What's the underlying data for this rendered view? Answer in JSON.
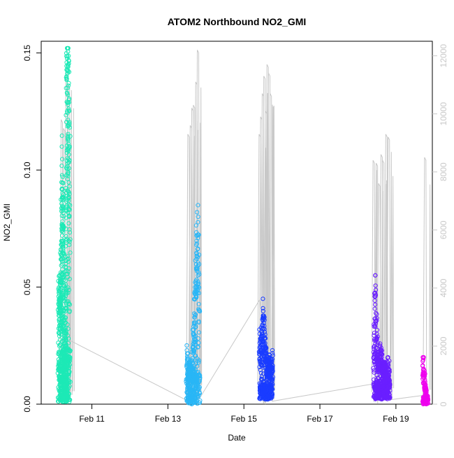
{
  "chart_data": {
    "type": "scatter",
    "title": "ATOM2 Northbound NO2_GMI",
    "xlabel": "Date",
    "ylabel": "NO2_GMI",
    "x_unit": "date",
    "xlim": [
      "2016-02-09T16:00",
      "2016-02-19T23:00"
    ],
    "ylim": [
      0.0,
      0.155
    ],
    "y2lim": [
      0,
      12500
    ],
    "x_ticks": [
      {
        "label": "Feb 11",
        "value": "2016-02-11"
      },
      {
        "label": "Feb 13",
        "value": "2016-02-13"
      },
      {
        "label": "Feb 15",
        "value": "2016-02-15"
      },
      {
        "label": "Feb 17",
        "value": "2016-02-17"
      },
      {
        "label": "Feb 19",
        "value": "2016-02-19"
      }
    ],
    "y_ticks": [
      "0.00",
      "0.05",
      "0.10",
      "0.15"
    ],
    "y2_ticks": [
      "0",
      "2000",
      "4000",
      "6000",
      "8000",
      "10000",
      "12000"
    ],
    "grid": false,
    "legend": "none",
    "colors": {
      "altitude_line": "#c8c8c8",
      "flights": [
        "#1de9b6",
        "#29b6f6",
        "#1a3cff",
        "#6a1fff",
        "#ee00ee"
      ]
    },
    "flights": [
      {
        "color": "#1de9b6",
        "x_range": [
          "2016-02-10T03:00",
          "2016-02-10T10:00"
        ],
        "no2_series": [
          {
            "x": "2016-02-10T03:00",
            "y": 0.046
          },
          {
            "x": "2016-02-10T03:30",
            "y": 0.055
          },
          {
            "x": "2016-02-10T04:00",
            "y": 0.048
          },
          {
            "x": "2016-02-10T04:30",
            "y": 0.052
          },
          {
            "x": "2016-02-10T05:00",
            "y": 0.11
          },
          {
            "x": "2016-02-10T05:30",
            "y": 0.09
          },
          {
            "x": "2016-02-10T06:00",
            "y": 0.075
          },
          {
            "x": "2016-02-10T06:30",
            "y": 0.04
          },
          {
            "x": "2016-02-10T07:00",
            "y": 0.02
          },
          {
            "x": "2016-02-10T07:30",
            "y": 0.06
          },
          {
            "x": "2016-02-10T08:00",
            "y": 0.14
          },
          {
            "x": "2016-02-10T08:30",
            "y": 0.152
          },
          {
            "x": "2016-02-10T09:00",
            "y": 0.145
          },
          {
            "x": "2016-02-10T09:30",
            "y": 0.13
          },
          {
            "x": "2016-02-10T10:00",
            "y": 0.11
          }
        ],
        "no2_range": [
          0.001,
          0.152
        ],
        "altitude_peaks": [
          {
            "x": "2016-02-10T05:00",
            "y": 9800
          },
          {
            "x": "2016-02-10T06:30",
            "y": 9500
          },
          {
            "x": "2016-02-10T08:00",
            "y": 11500
          },
          {
            "x": "2016-02-10T09:30",
            "y": 11000
          }
        ]
      },
      {
        "color": "#29b6f6",
        "x_range": [
          "2016-02-13T12:00",
          "2016-02-13T20:00"
        ],
        "no2_series": [
          {
            "x": "2016-02-13T12:00",
            "y": 0.023
          },
          {
            "x": "2016-02-13T13:00",
            "y": 0.015
          },
          {
            "x": "2016-02-13T14:00",
            "y": 0.018
          },
          {
            "x": "2016-02-13T15:00",
            "y": 0.015
          },
          {
            "x": "2016-02-13T16:00",
            "y": 0.03
          },
          {
            "x": "2016-02-13T17:00",
            "y": 0.045
          },
          {
            "x": "2016-02-13T18:00",
            "y": 0.068
          },
          {
            "x": "2016-02-13T19:00",
            "y": 0.085
          },
          {
            "x": "2016-02-13T20:00",
            "y": 0.04
          }
        ],
        "no2_range": [
          0.0,
          0.085
        ],
        "altitude_peaks": [
          {
            "x": "2016-02-13T13:00",
            "y": 9300
          },
          {
            "x": "2016-02-13T14:30",
            "y": 9600
          },
          {
            "x": "2016-02-13T15:30",
            "y": 10200
          },
          {
            "x": "2016-02-13T16:30",
            "y": 10300
          },
          {
            "x": "2016-02-13T18:00",
            "y": 11100
          },
          {
            "x": "2016-02-13T19:00",
            "y": 12200
          }
        ]
      },
      {
        "color": "#1a3cff",
        "x_range": [
          "2016-02-15T10:00",
          "2016-02-15T18:00"
        ],
        "no2_series": [
          {
            "x": "2016-02-15T10:00",
            "y": 0.03
          },
          {
            "x": "2016-02-15T11:00",
            "y": 0.025
          },
          {
            "x": "2016-02-15T12:00",
            "y": 0.045
          },
          {
            "x": "2016-02-15T13:00",
            "y": 0.028
          },
          {
            "x": "2016-02-15T14:00",
            "y": 0.022
          },
          {
            "x": "2016-02-15T15:00",
            "y": 0.018
          },
          {
            "x": "2016-02-15T16:00",
            "y": 0.02
          },
          {
            "x": "2016-02-15T17:00",
            "y": 0.015
          },
          {
            "x": "2016-02-15T18:00",
            "y": 0.023
          }
        ],
        "no2_range": [
          0.002,
          0.046
        ],
        "altitude_peaks": [
          {
            "x": "2016-02-15T10:00",
            "y": 9300
          },
          {
            "x": "2016-02-15T11:00",
            "y": 9900
          },
          {
            "x": "2016-02-15T12:00",
            "y": 10700
          },
          {
            "x": "2016-02-15T13:00",
            "y": 11300
          },
          {
            "x": "2016-02-15T14:00",
            "y": 10100
          },
          {
            "x": "2016-02-15T15:00",
            "y": 11700
          },
          {
            "x": "2016-02-15T16:00",
            "y": 11400
          },
          {
            "x": "2016-02-15T17:00",
            "y": 10700
          }
        ]
      },
      {
        "color": "#6a1fff",
        "x_range": [
          "2016-02-18T10:00",
          "2016-02-18T20:00"
        ],
        "no2_series": [
          {
            "x": "2016-02-18T10:00",
            "y": 0.02
          },
          {
            "x": "2016-02-18T11:00",
            "y": 0.055
          },
          {
            "x": "2016-02-18T12:00",
            "y": 0.03
          },
          {
            "x": "2016-02-18T13:00",
            "y": 0.018
          },
          {
            "x": "2016-02-18T14:00",
            "y": 0.025
          },
          {
            "x": "2016-02-18T15:00",
            "y": 0.02
          },
          {
            "x": "2016-02-18T16:00",
            "y": 0.015
          },
          {
            "x": "2016-02-18T17:00",
            "y": 0.018
          },
          {
            "x": "2016-02-18T18:00",
            "y": 0.012
          },
          {
            "x": "2016-02-18T19:00",
            "y": 0.02
          },
          {
            "x": "2016-02-18T20:00",
            "y": 0.01
          }
        ],
        "no2_range": [
          0.002,
          0.055
        ],
        "altitude_peaks": [
          {
            "x": "2016-02-18T10:00",
            "y": 8400
          },
          {
            "x": "2016-02-18T12:00",
            "y": 8300
          },
          {
            "x": "2016-02-18T13:30",
            "y": 7600
          },
          {
            "x": "2016-02-18T15:00",
            "y": 8600
          },
          {
            "x": "2016-02-18T16:00",
            "y": 8400
          },
          {
            "x": "2016-02-18T18:00",
            "y": 9300
          },
          {
            "x": "2016-02-18T19:30",
            "y": 9200
          }
        ]
      },
      {
        "color": "#ee00ee",
        "x_range": [
          "2016-02-19T17:00",
          "2016-02-19T20:00"
        ],
        "no2_series": [
          {
            "x": "2016-02-19T17:00",
            "y": 0.02
          },
          {
            "x": "2016-02-19T18:00",
            "y": 0.012
          },
          {
            "x": "2016-02-19T19:00",
            "y": 0.005
          },
          {
            "x": "2016-02-19T20:00",
            "y": 0.002
          }
        ],
        "no2_range": [
          0.0,
          0.02
        ],
        "altitude_peaks": [
          {
            "x": "2016-02-19T18:30",
            "y": 8500
          }
        ]
      }
    ],
    "altitude_transits": [
      {
        "x": "2016-02-10T10:00",
        "y": 2200
      },
      {
        "x": "2016-02-13T13:00",
        "y": 100
      },
      {
        "x": "2016-02-13T20:00",
        "y": 200
      },
      {
        "x": "2016-02-15T10:00",
        "y": 3600
      },
      {
        "x": "2016-02-15T18:00",
        "y": 100
      },
      {
        "x": "2016-02-18T10:00",
        "y": 700
      },
      {
        "x": "2016-02-18T20:00",
        "y": 150
      },
      {
        "x": "2016-02-19T17:00",
        "y": 300
      }
    ]
  }
}
